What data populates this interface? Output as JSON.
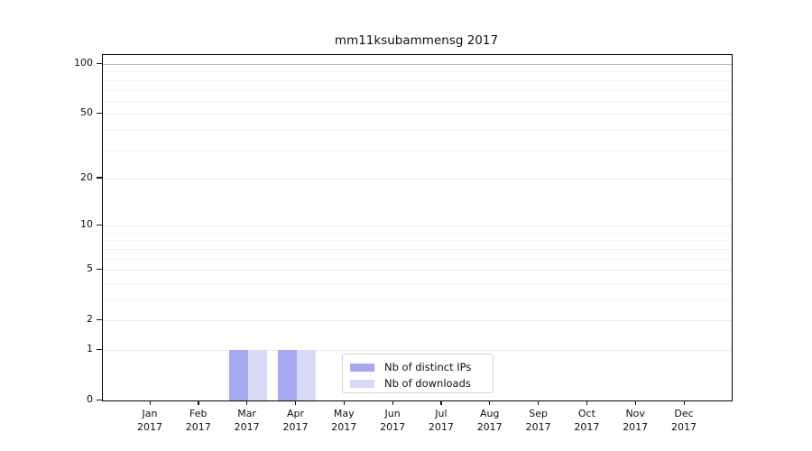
{
  "title": "mm11ksubammensg 2017",
  "chart_data": {
    "type": "bar",
    "title": "mm11ksubammensg 2017",
    "categories": [
      "Jan",
      "Feb",
      "Mar",
      "Apr",
      "May",
      "Jun",
      "Jul",
      "Aug",
      "Sep",
      "Oct",
      "Nov",
      "Dec"
    ],
    "category_year": "2017",
    "series": [
      {
        "name": "Nb of distinct IPs",
        "color": "#a8a8f2",
        "values": [
          0,
          0,
          1,
          1,
          0,
          0,
          0,
          0,
          0,
          0,
          0,
          0
        ]
      },
      {
        "name": "Nb of downloads",
        "color": "#d8d8f7",
        "values": [
          0,
          0,
          1,
          1,
          0,
          0,
          0,
          0,
          0,
          0,
          0,
          0
        ]
      }
    ],
    "xlabel": "",
    "ylabel": "",
    "y_scale": "log10(1+x)",
    "y_major_ticks": [
      0,
      1,
      2,
      5,
      10,
      20,
      50,
      100
    ],
    "y_minor_gridlines": [
      3,
      4,
      6,
      7,
      8,
      9,
      30,
      40,
      60,
      70,
      80,
      90
    ],
    "ylim": [
      0,
      113
    ],
    "grid": true,
    "legend_position": "bottom-center",
    "colors": {
      "grid_major": "#e9e9e9",
      "grid_top": "#bdbdbd",
      "grid_minor": "#f3f3f3",
      "axis": "#000000"
    }
  }
}
